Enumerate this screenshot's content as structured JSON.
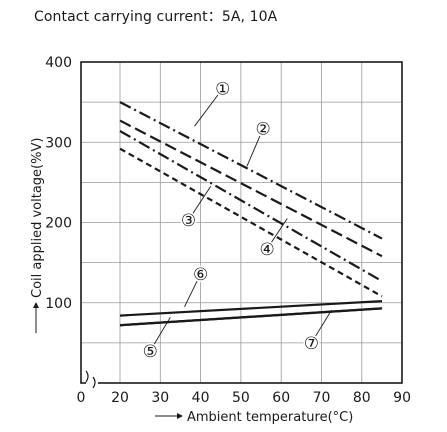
{
  "caption": "Contact carrying current：5A, 10A",
  "chart_data": {
    "type": "line",
    "xlabel": "Ambient temperature(°C)",
    "ylabel": "Coil applied voltage(%V)",
    "xlim": [
      20,
      90
    ],
    "ylim": [
      0,
      400
    ],
    "x_ticks": [
      "0",
      "20",
      "30",
      "40",
      "50",
      "60",
      "70",
      "80",
      "90"
    ],
    "y_ticks": [
      "100",
      "200",
      "300",
      "400"
    ],
    "grid": true,
    "axis_break": true,
    "series": [
      {
        "label": "①",
        "style": "dashdot",
        "x": [
          20,
          85
        ],
        "y": [
          350,
          180
        ]
      },
      {
        "label": "②",
        "style": "longdash",
        "x": [
          20,
          85
        ],
        "y": [
          327,
          158
        ]
      },
      {
        "label": "③",
        "style": "dashdot",
        "x": [
          20,
          85
        ],
        "y": [
          314,
          127
        ]
      },
      {
        "label": "④",
        "style": "dashed",
        "x": [
          20,
          85
        ],
        "y": [
          292,
          108
        ]
      },
      {
        "label": "⑤",
        "style": "solid",
        "x": [
          20,
          85
        ],
        "y": [
          72,
          93
        ]
      },
      {
        "label": "⑥",
        "style": "solid",
        "x": [
          20,
          85
        ],
        "y": [
          84,
          102
        ]
      },
      {
        "label": "⑦",
        "style": "solid",
        "x": [
          20,
          85
        ],
        "y": [
          72,
          93
        ]
      }
    ],
    "annotations": [
      {
        "text": "①",
        "x": 45.5,
        "y": 367,
        "tx": 38.5,
        "ty": 320
      },
      {
        "text": "②",
        "x": 55.5,
        "y": 317,
        "tx": 51.5,
        "ty": 270
      },
      {
        "text": "③",
        "x": 37.0,
        "y": 203,
        "tx": 42.5,
        "ty": 245
      },
      {
        "text": "④",
        "x": 56.5,
        "y": 167,
        "tx": 61.5,
        "ty": 205
      },
      {
        "text": "⑥",
        "x": 40.0,
        "y": 136,
        "tx": 36.0,
        "ty": 95
      },
      {
        "text": "⑤",
        "x": 27.5,
        "y": 40,
        "tx": 32.5,
        "ty": 82
      },
      {
        "text": "⑦",
        "x": 67.5,
        "y": 50,
        "tx": 72.5,
        "ty": 91
      }
    ]
  }
}
